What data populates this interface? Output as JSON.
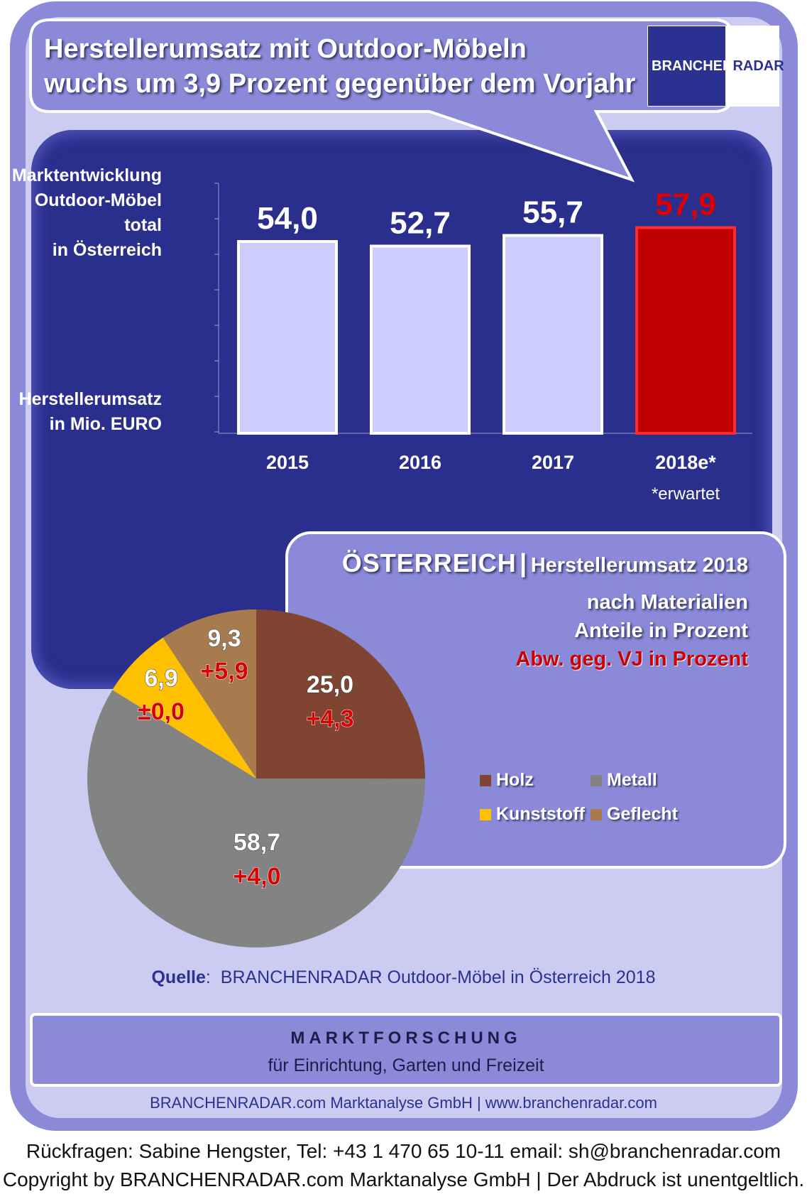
{
  "headline": {
    "line1": "Herstellerumsatz mit  Outdoor-Möbeln",
    "line2": "wuchs um 3,9 Prozent gegenüber dem Vorjahr"
  },
  "logo": {
    "part1": "BRANCHEN",
    "part2": "RADAR"
  },
  "bar_chart": {
    "desc_top": [
      "Marktentwicklung",
      "Outdoor-Möbel",
      "total",
      "in Österreich"
    ],
    "desc_bottom": [
      "Herstellerumsatz",
      "in Mio. EURO"
    ],
    "footnote": "*erwartet"
  },
  "pie": {
    "title_big": "ÖSTERREICH",
    "title_sep": "|",
    "title_small": "Herstellerumsatz 2018",
    "sub1": "nach Materialien",
    "sub2": "Anteile in Prozent",
    "sub3": "Abw. geg. VJ in Prozent"
  },
  "chart_data": [
    {
      "type": "bar",
      "categories": [
        "2015",
        "2016",
        "2017",
        "2018e*"
      ],
      "values": [
        54.0,
        52.7,
        55.7,
        57.9
      ],
      "value_labels": [
        "54,0",
        "52,7",
        "55,7",
        "57,9"
      ],
      "ylabel": "Herstellerumsatz in Mio. EURO",
      "highlight_index": 3,
      "colors": {
        "bar": "#ccccff",
        "highlight": "#c00000",
        "highlight_label": "#e00000"
      }
    },
    {
      "type": "pie",
      "title": "Herstellerumsatz 2018 nach Materialien",
      "slices": [
        {
          "name": "Holz",
          "value": 25.0,
          "label": "25,0",
          "change": "+4,3",
          "color": "#7f4532"
        },
        {
          "name": "Metall",
          "value": 58.7,
          "label": "58,7",
          "change": "+4,0",
          "color": "#838383"
        },
        {
          "name": "Kunststoff",
          "value": 6.9,
          "label": "6,9",
          "change": "±0,0",
          "color": "#ffc000"
        },
        {
          "name": "Geflecht",
          "value": 9.3,
          "label": "9,3",
          "change": "+5,9",
          "color": "#a87b4f"
        }
      ],
      "legend": [
        "Holz",
        "Metall",
        "Kunststoff",
        "Geflecht"
      ],
      "legend_placement": "right"
    }
  ],
  "source": {
    "label": "Quelle",
    "colon": ":",
    "text": "BRANCHENRADAR Outdoor-Möbel in Österreich 2018"
  },
  "footer": {
    "title": "MARKTFORSCHUNG",
    "subtitle": "für Einrichtung, Garten und Freizeit",
    "company": "BRANCHENRADAR.com Marktanalyse GmbH | www.branchenradar.com"
  },
  "contact": {
    "line1": "Rückfragen: Sabine Hengster, Tel: +43 1 470 65 10-11 email: sh@branchenradar.com",
    "line2": "Copyright by BRANCHENRADAR.com  Marktanalyse GmbH | Der Abdruck ist unentgeltlich."
  }
}
